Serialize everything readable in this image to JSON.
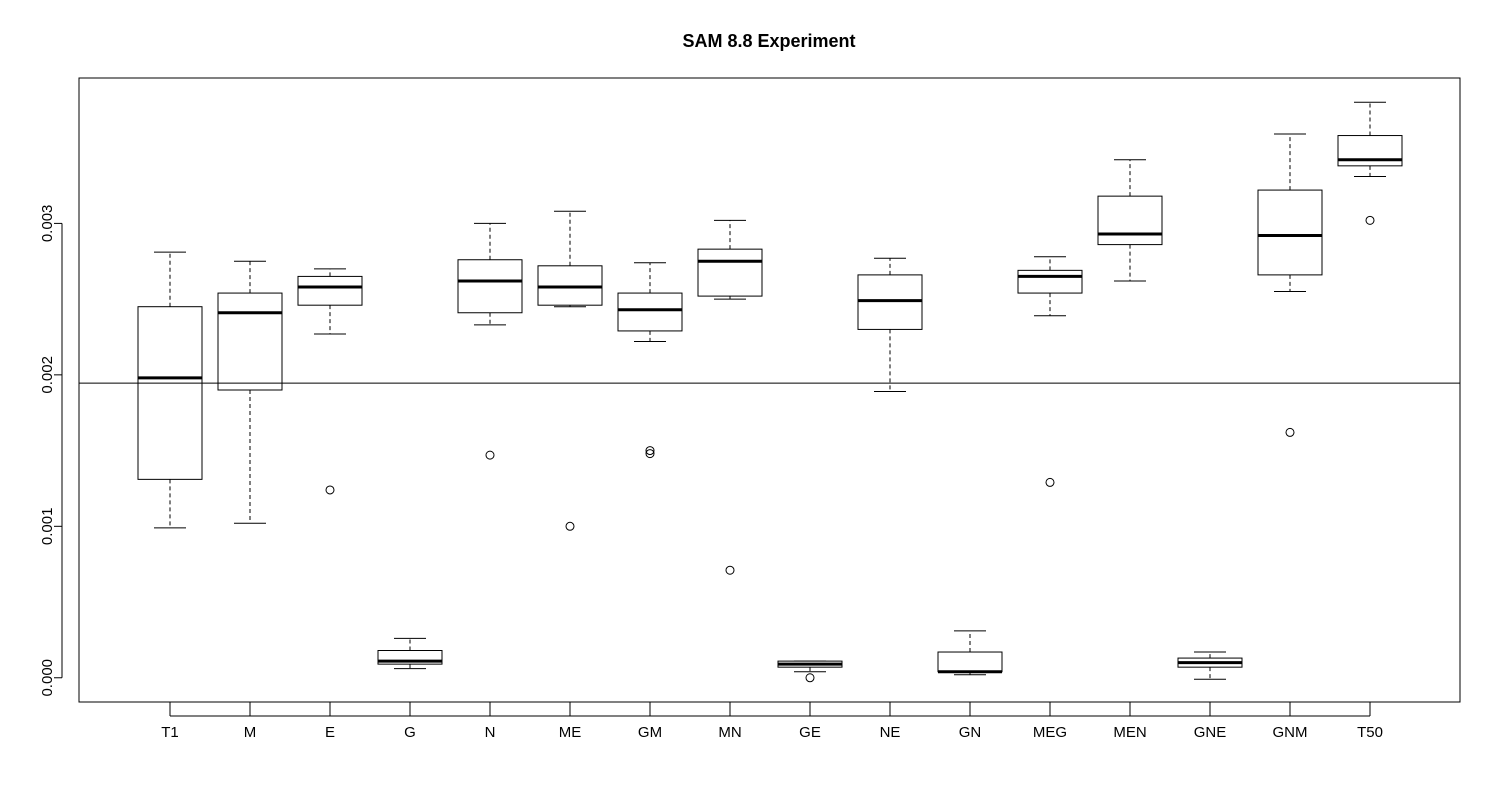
{
  "chart_data": {
    "type": "boxplot",
    "title": "SAM 8.8 Experiment",
    "xlabel": "",
    "ylabel": "",
    "ylim": [
      -0.00016,
      0.00396
    ],
    "yticks": [
      0.0,
      0.001,
      0.002,
      0.003
    ],
    "ytick_labels": [
      "0.000",
      "0.001",
      "0.002",
      "0.003"
    ],
    "reference_line": 0.001945,
    "grid": false,
    "legend": "none",
    "categories": [
      "T1",
      "M",
      "E",
      "G",
      "N",
      "ME",
      "GM",
      "MN",
      "GE",
      "NE",
      "GN",
      "MEG",
      "MEN",
      "GNE",
      "GNM",
      "T50"
    ],
    "boxes": [
      {
        "label": "T1",
        "whisker_low": 0.00099,
        "q1": 0.00131,
        "median": 0.00198,
        "q3": 0.00245,
        "whisker_high": 0.00281,
        "outliers": []
      },
      {
        "label": "M",
        "whisker_low": 0.00102,
        "q1": 0.0019,
        "median": 0.00241,
        "q3": 0.00254,
        "whisker_high": 0.00275,
        "outliers": []
      },
      {
        "label": "E",
        "whisker_low": 0.00227,
        "q1": 0.00246,
        "median": 0.00258,
        "q3": 0.00265,
        "whisker_high": 0.0027,
        "outliers": [
          0.00124
        ]
      },
      {
        "label": "G",
        "whisker_low": 6e-05,
        "q1": 9e-05,
        "median": 0.00011,
        "q3": 0.00018,
        "whisker_high": 0.00026,
        "outliers": []
      },
      {
        "label": "N",
        "whisker_low": 0.00233,
        "q1": 0.00241,
        "median": 0.00262,
        "q3": 0.00276,
        "whisker_high": 0.003,
        "outliers": [
          0.00147
        ]
      },
      {
        "label": "ME",
        "whisker_low": 0.00245,
        "q1": 0.00246,
        "median": 0.00258,
        "q3": 0.00272,
        "whisker_high": 0.00308,
        "outliers": [
          0.001
        ]
      },
      {
        "label": "GM",
        "whisker_low": 0.00222,
        "q1": 0.00229,
        "median": 0.00243,
        "q3": 0.00254,
        "whisker_high": 0.00274,
        "outliers": [
          0.0015,
          0.00148
        ]
      },
      {
        "label": "MN",
        "whisker_low": 0.0025,
        "q1": 0.00252,
        "median": 0.00275,
        "q3": 0.00283,
        "whisker_high": 0.00302,
        "outliers": [
          0.00071
        ]
      },
      {
        "label": "GE",
        "whisker_low": 4e-05,
        "q1": 7e-05,
        "median": 9e-05,
        "q3": 0.00011,
        "whisker_high": 0.00011,
        "outliers": [
          0.0
        ]
      },
      {
        "label": "NE",
        "whisker_low": 0.00189,
        "q1": 0.0023,
        "median": 0.00249,
        "q3": 0.00266,
        "whisker_high": 0.00277,
        "outliers": []
      },
      {
        "label": "GN",
        "whisker_low": 2e-05,
        "q1": 4e-05,
        "median": 4e-05,
        "q3": 0.00017,
        "whisker_high": 0.00031,
        "outliers": []
      },
      {
        "label": "MEG",
        "whisker_low": 0.00239,
        "q1": 0.00254,
        "median": 0.00265,
        "q3": 0.00269,
        "whisker_high": 0.00278,
        "outliers": [
          0.00129
        ]
      },
      {
        "label": "MEN",
        "whisker_low": 0.00262,
        "q1": 0.00286,
        "median": 0.00293,
        "q3": 0.00318,
        "whisker_high": 0.00342,
        "outliers": []
      },
      {
        "label": "GNE",
        "whisker_low": -1e-05,
        "q1": 7e-05,
        "median": 0.0001,
        "q3": 0.00013,
        "whisker_high": 0.00017,
        "outliers": []
      },
      {
        "label": "GNM",
        "whisker_low": 0.00255,
        "q1": 0.00266,
        "median": 0.00292,
        "q3": 0.00322,
        "whisker_high": 0.00359,
        "outliers": [
          0.00162
        ]
      },
      {
        "label": "T50",
        "whisker_low": 0.00331,
        "q1": 0.00338,
        "median": 0.00342,
        "q3": 0.00358,
        "whisker_high": 0.0038,
        "outliers": [
          0.00302
        ]
      }
    ]
  }
}
